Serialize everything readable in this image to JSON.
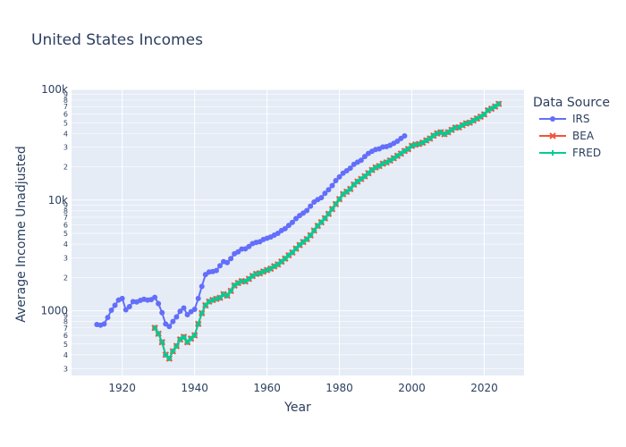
{
  "chart_data": {
    "type": "line",
    "title": "United States Incomes",
    "xlabel": "Year",
    "ylabel": "Average Income Unadjusted",
    "xlim": [
      1906,
      2031
    ],
    "ylim": [
      260,
      100000
    ],
    "y_scale": "log",
    "grid": true,
    "legend_title": "Data Source",
    "legend_position": "right",
    "x_ticks": [
      "1920",
      "1940",
      "1960",
      "1980",
      "2000",
      "2020"
    ],
    "y_major_ticks": [
      {
        "value": 1000,
        "label": "1000"
      },
      {
        "value": 10000,
        "label": "10k"
      },
      {
        "value": 100000,
        "label": "100k"
      }
    ],
    "y_minor_ticks": [
      {
        "value": 300,
        "label": "3"
      },
      {
        "value": 400,
        "label": "4"
      },
      {
        "value": 500,
        "label": "5"
      },
      {
        "value": 600,
        "label": "6"
      },
      {
        "value": 700,
        "label": "7"
      },
      {
        "value": 800,
        "label": "8"
      },
      {
        "value": 900,
        "label": "9"
      },
      {
        "value": 2000,
        "label": "2"
      },
      {
        "value": 3000,
        "label": "3"
      },
      {
        "value": 4000,
        "label": "4"
      },
      {
        "value": 5000,
        "label": "5"
      },
      {
        "value": 6000,
        "label": "6"
      },
      {
        "value": 7000,
        "label": "7"
      },
      {
        "value": 8000,
        "label": "8"
      },
      {
        "value": 9000,
        "label": "9"
      },
      {
        "value": 20000,
        "label": "2"
      },
      {
        "value": 30000,
        "label": "3"
      },
      {
        "value": 40000,
        "label": "4"
      },
      {
        "value": 50000,
        "label": "5"
      },
      {
        "value": 60000,
        "label": "6"
      },
      {
        "value": 70000,
        "label": "7"
      },
      {
        "value": 80000,
        "label": "8"
      },
      {
        "value": 90000,
        "label": "9"
      }
    ],
    "series": [
      {
        "name": "IRS",
        "color": "#636efa",
        "marker": "circle",
        "x": [
          1913,
          1914,
          1915,
          1916,
          1917,
          1918,
          1919,
          1920,
          1921,
          1922,
          1923,
          1924,
          1925,
          1926,
          1927,
          1928,
          1929,
          1930,
          1931,
          1932,
          1933,
          1934,
          1935,
          1936,
          1937,
          1938,
          1939,
          1940,
          1941,
          1942,
          1943,
          1944,
          1945,
          1946,
          1947,
          1948,
          1949,
          1950,
          1951,
          1952,
          1953,
          1954,
          1955,
          1956,
          1957,
          1958,
          1959,
          1960,
          1961,
          1962,
          1963,
          1964,
          1965,
          1966,
          1967,
          1968,
          1969,
          1970,
          1971,
          1972,
          1973,
          1974,
          1975,
          1976,
          1977,
          1978,
          1979,
          1980,
          1981,
          1982,
          1983,
          1984,
          1985,
          1986,
          1987,
          1988,
          1989,
          1990,
          1991,
          1992,
          1993,
          1994,
          1995,
          1996,
          1997,
          1998
        ],
        "y": [
          750,
          740,
          760,
          870,
          1010,
          1120,
          1250,
          1290,
          1020,
          1090,
          1210,
          1200,
          1240,
          1270,
          1250,
          1260,
          1320,
          1160,
          960,
          760,
          720,
          800,
          880,
          990,
          1060,
          920,
          980,
          1030,
          1290,
          1660,
          2120,
          2240,
          2260,
          2310,
          2550,
          2780,
          2720,
          2960,
          3270,
          3400,
          3610,
          3620,
          3800,
          4040,
          4150,
          4200,
          4400,
          4520,
          4640,
          4820,
          5000,
          5300,
          5520,
          5900,
          6280,
          6800,
          7250,
          7620,
          8050,
          8800,
          9600,
          10100,
          10500,
          11500,
          12400,
          13500,
          15000,
          16200,
          17500,
          18400,
          19400,
          21000,
          22000,
          22900,
          24700,
          26400,
          27600,
          28600,
          29000,
          30200,
          30400,
          31300,
          32500,
          34000,
          36000,
          38000
        ]
      },
      {
        "name": "BEA",
        "color": "#ef553b",
        "marker": "x",
        "x": [
          1929,
          1930,
          1931,
          1932,
          1933,
          1934,
          1935,
          1936,
          1937,
          1938,
          1939,
          1940,
          1941,
          1942,
          1943,
          1944,
          1945,
          1946,
          1947,
          1948,
          1949,
          1950,
          1951,
          1952,
          1953,
          1954,
          1955,
          1956,
          1957,
          1958,
          1959,
          1960,
          1961,
          1962,
          1963,
          1964,
          1965,
          1966,
          1967,
          1968,
          1969,
          1970,
          1971,
          1972,
          1973,
          1974,
          1975,
          1976,
          1977,
          1978,
          1979,
          1980,
          1981,
          1982,
          1983,
          1984,
          1985,
          1986,
          1987,
          1988,
          1989,
          1990,
          1991,
          1992,
          1993,
          1994,
          1995,
          1996,
          1997,
          1998,
          1999,
          2000,
          2001,
          2002,
          2003,
          2004,
          2005,
          2006,
          2007,
          2008,
          2009,
          2010,
          2011,
          2012,
          2013,
          2014,
          2015,
          2016,
          2017,
          2018,
          2019,
          2020,
          2021,
          2022,
          2023,
          2024
        ],
        "y": [
          700,
          620,
          520,
          400,
          370,
          430,
          480,
          550,
          580,
          520,
          560,
          600,
          760,
          950,
          1120,
          1210,
          1250,
          1280,
          1310,
          1410,
          1370,
          1510,
          1690,
          1780,
          1850,
          1840,
          1940,
          2060,
          2150,
          2180,
          2260,
          2330,
          2400,
          2520,
          2620,
          2780,
          2960,
          3170,
          3360,
          3640,
          3920,
          4180,
          4440,
          4800,
          5300,
          5850,
          6300,
          6850,
          7500,
          8300,
          9200,
          10200,
          11300,
          11900,
          12600,
          13800,
          14700,
          15500,
          16400,
          17500,
          18700,
          19700,
          20300,
          21300,
          21900,
          22800,
          23900,
          25100,
          26300,
          27800,
          28900,
          30900,
          31700,
          32100,
          33000,
          34600,
          36000,
          38200,
          40000,
          41000,
          39400,
          41000,
          43100,
          45100,
          45400,
          47500,
          49300,
          50100,
          52300,
          54500,
          56700,
          59500,
          64700,
          67000,
          70000,
          74000
        ]
      },
      {
        "name": "FRED",
        "color": "#00cc96",
        "marker": "cross",
        "x": [
          1929,
          1930,
          1931,
          1932,
          1933,
          1934,
          1935,
          1936,
          1937,
          1938,
          1939,
          1940,
          1941,
          1942,
          1943,
          1944,
          1945,
          1946,
          1947,
          1948,
          1949,
          1950,
          1951,
          1952,
          1953,
          1954,
          1955,
          1956,
          1957,
          1958,
          1959,
          1960,
          1961,
          1962,
          1963,
          1964,
          1965,
          1966,
          1967,
          1968,
          1969,
          1970,
          1971,
          1972,
          1973,
          1974,
          1975,
          1976,
          1977,
          1978,
          1979,
          1980,
          1981,
          1982,
          1983,
          1984,
          1985,
          1986,
          1987,
          1988,
          1989,
          1990,
          1991,
          1992,
          1993,
          1994,
          1995,
          1996,
          1997,
          1998,
          1999,
          2000,
          2001,
          2002,
          2003,
          2004,
          2005,
          2006,
          2007,
          2008,
          2009,
          2010,
          2011,
          2012,
          2013,
          2014,
          2015,
          2016,
          2017,
          2018,
          2019,
          2020,
          2021,
          2022,
          2023,
          2024
        ],
        "y": [
          700,
          620,
          520,
          400,
          370,
          430,
          480,
          550,
          580,
          520,
          560,
          600,
          760,
          950,
          1120,
          1210,
          1250,
          1280,
          1310,
          1410,
          1370,
          1510,
          1690,
          1780,
          1850,
          1840,
          1940,
          2060,
          2150,
          2180,
          2260,
          2330,
          2400,
          2520,
          2620,
          2780,
          2960,
          3170,
          3360,
          3640,
          3920,
          4180,
          4440,
          4800,
          5300,
          5850,
          6300,
          6850,
          7500,
          8300,
          9200,
          10200,
          11300,
          11900,
          12600,
          13800,
          14700,
          15500,
          16400,
          17500,
          18700,
          19700,
          20300,
          21300,
          21900,
          22800,
          23900,
          25100,
          26300,
          27800,
          28900,
          30900,
          31700,
          32100,
          33000,
          34600,
          36000,
          38200,
          40000,
          41000,
          39400,
          41000,
          43100,
          45100,
          45400,
          47500,
          49300,
          50100,
          52300,
          54500,
          56700,
          59500,
          64700,
          67000,
          70000,
          74000
        ]
      }
    ]
  }
}
